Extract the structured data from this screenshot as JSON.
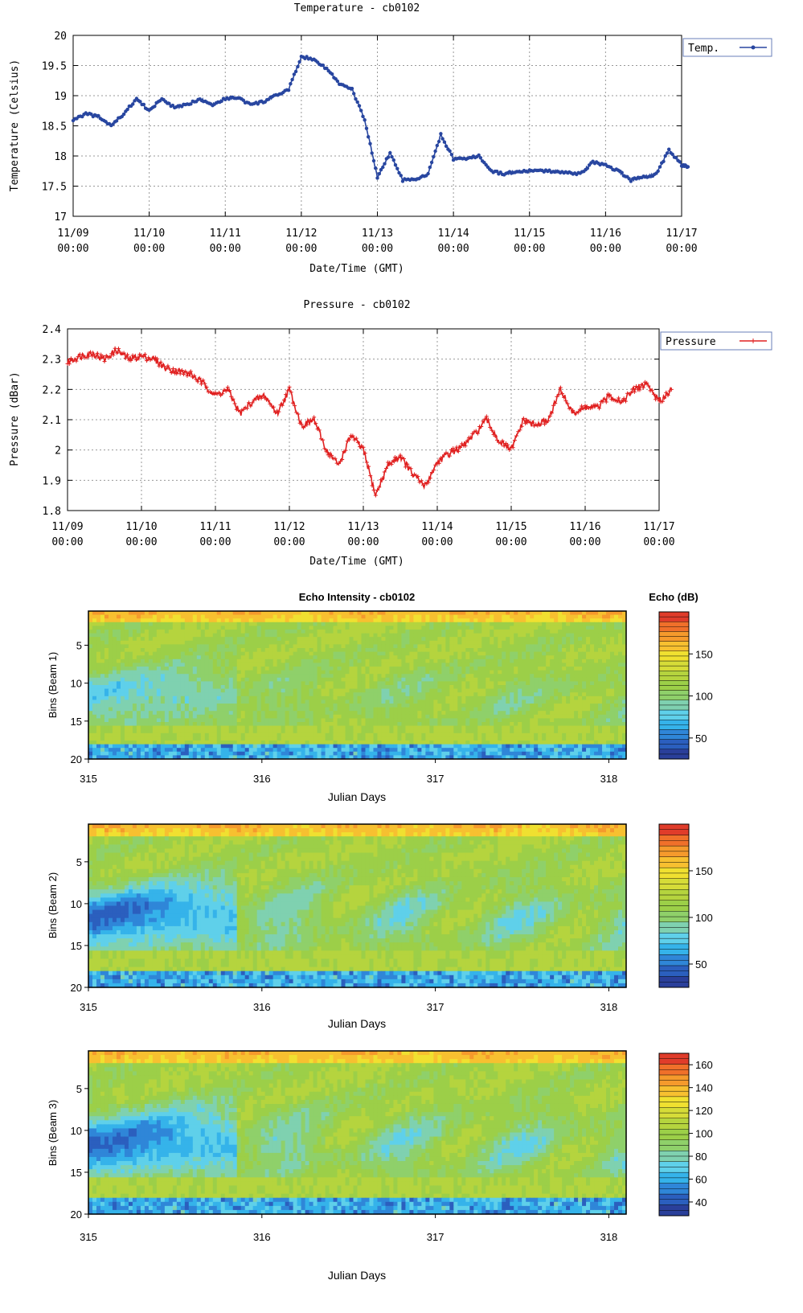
{
  "chart_data": [
    {
      "type": "line",
      "title": "Temperature -  cb0102",
      "xlabel": "Date/Time (GMT)",
      "ylabel": "Temperature (Celsius)",
      "ylim": [
        17,
        20
      ],
      "yticks": [
        "17",
        "17.5",
        "18",
        "18.5",
        "19",
        "19.5",
        "20"
      ],
      "xticks": [
        {
          "date": "11/09",
          "time": "00:00"
        },
        {
          "date": "11/10",
          "time": "00:00"
        },
        {
          "date": "11/11",
          "time": "00:00"
        },
        {
          "date": "11/12",
          "time": "00:00"
        },
        {
          "date": "11/13",
          "time": "00:00"
        },
        {
          "date": "11/14",
          "time": "00:00"
        },
        {
          "date": "11/15",
          "time": "00:00"
        },
        {
          "date": "11/16",
          "time": "00:00"
        },
        {
          "date": "11/17",
          "time": "00:00"
        }
      ],
      "grid": true,
      "legend_position": "outside-top-right",
      "series": [
        {
          "name": "Temp.",
          "color": "#2846a0",
          "x": [
            "11/09 00:00",
            "11/09 04:00",
            "11/09 08:00",
            "11/09 12:00",
            "11/09 16:00",
            "11/09 20:00",
            "11/10 00:00",
            "11/10 04:00",
            "11/10 08:00",
            "11/10 12:00",
            "11/10 16:00",
            "11/10 20:00",
            "11/11 00:00",
            "11/11 04:00",
            "11/11 08:00",
            "11/11 12:00",
            "11/11 16:00",
            "11/11 20:00",
            "11/12 00:00",
            "11/12 04:00",
            "11/12 08:00",
            "11/12 12:00",
            "11/12 16:00",
            "11/12 20:00",
            "11/13 00:00",
            "11/13 04:00",
            "11/13 08:00",
            "11/13 12:00",
            "11/13 16:00",
            "11/13 20:00",
            "11/14 00:00",
            "11/14 04:00",
            "11/14 08:00",
            "11/14 12:00",
            "11/14 16:00",
            "11/14 20:00",
            "11/15 00:00",
            "11/15 04:00",
            "11/15 08:00",
            "11/15 12:00",
            "11/15 16:00",
            "11/15 20:00",
            "11/16 00:00",
            "11/16 04:00",
            "11/16 08:00",
            "11/16 12:00",
            "11/16 16:00",
            "11/16 20:00",
            "11/17 00:00",
            "11/17 02:00"
          ],
          "y": [
            18.6,
            18.7,
            18.65,
            18.5,
            18.7,
            18.95,
            18.75,
            18.95,
            18.8,
            18.85,
            18.95,
            18.85,
            18.95,
            18.97,
            18.85,
            18.9,
            19.0,
            19.1,
            19.65,
            19.6,
            19.45,
            19.2,
            19.1,
            18.6,
            17.65,
            18.05,
            17.6,
            17.6,
            17.7,
            18.35,
            17.95,
            17.95,
            18.0,
            17.75,
            17.7,
            17.75,
            17.75,
            17.75,
            17.75,
            17.72,
            17.7,
            17.9,
            17.85,
            17.75,
            17.6,
            17.65,
            17.7,
            18.1,
            17.85,
            17.82
          ]
        }
      ]
    },
    {
      "type": "line",
      "title": "Pressure -  cb0102",
      "xlabel": "Date/Time (GMT)",
      "ylabel": "Pressure (dBar)",
      "ylim": [
        1.8,
        2.4
      ],
      "yticks": [
        "1.8",
        "1.9",
        "2",
        "2.1",
        "2.2",
        "2.3",
        "2.4"
      ],
      "xticks": [
        {
          "date": "11/09",
          "time": "00:00"
        },
        {
          "date": "11/10",
          "time": "00:00"
        },
        {
          "date": "11/11",
          "time": "00:00"
        },
        {
          "date": "11/12",
          "time": "00:00"
        },
        {
          "date": "11/13",
          "time": "00:00"
        },
        {
          "date": "11/14",
          "time": "00:00"
        },
        {
          "date": "11/15",
          "time": "00:00"
        },
        {
          "date": "11/16",
          "time": "00:00"
        },
        {
          "date": "11/17",
          "time": "00:00"
        }
      ],
      "grid": true,
      "legend_position": "outside-top-right",
      "series": [
        {
          "name": "Pressure",
          "color": "#e02020",
          "x": [
            "11/09 00:00",
            "11/09 04:00",
            "11/09 08:00",
            "11/09 12:00",
            "11/09 16:00",
            "11/09 20:00",
            "11/10 00:00",
            "11/10 04:00",
            "11/10 08:00",
            "11/10 12:00",
            "11/10 16:00",
            "11/10 20:00",
            "11/11 00:00",
            "11/11 04:00",
            "11/11 08:00",
            "11/11 12:00",
            "11/11 16:00",
            "11/11 20:00",
            "11/12 00:00",
            "11/12 04:00",
            "11/12 08:00",
            "11/12 12:00",
            "11/12 16:00",
            "11/12 20:00",
            "11/13 00:00",
            "11/13 04:00",
            "11/13 08:00",
            "11/13 12:00",
            "11/13 16:00",
            "11/13 20:00",
            "11/14 00:00",
            "11/14 04:00",
            "11/14 08:00",
            "11/14 12:00",
            "11/14 16:00",
            "11/14 20:00",
            "11/15 00:00",
            "11/15 04:00",
            "11/15 08:00",
            "11/15 12:00",
            "11/15 16:00",
            "11/15 20:00",
            "11/16 00:00",
            "11/16 04:00",
            "11/16 08:00",
            "11/16 12:00",
            "11/16 16:00",
            "11/16 20:00",
            "11/17 00:00",
            "11/17 04:00"
          ],
          "y": [
            2.29,
            2.31,
            2.32,
            2.3,
            2.33,
            2.3,
            2.31,
            2.3,
            2.27,
            2.26,
            2.25,
            2.22,
            2.18,
            2.2,
            2.12,
            2.16,
            2.18,
            2.12,
            2.2,
            2.08,
            2.1,
            2.0,
            1.95,
            2.05,
            2.0,
            1.85,
            1.95,
            1.98,
            1.92,
            1.88,
            1.96,
            1.99,
            2.01,
            2.05,
            2.1,
            2.03,
            2.0,
            2.1,
            2.08,
            2.1,
            2.2,
            2.12,
            2.14,
            2.14,
            2.18,
            2.16,
            2.2,
            2.22,
            2.16,
            2.2
          ]
        }
      ]
    },
    {
      "type": "heatmap",
      "title": "Echo Intensity - cb0102",
      "colorbar_label": "Echo (dB)",
      "xlabel": "Julian Days",
      "ylabel": "Bins (Beam 1)",
      "xlim": [
        315,
        318.1
      ],
      "ylim": [
        20,
        1
      ],
      "xticks": [
        "315",
        "316",
        "317",
        "318"
      ],
      "yticks": [
        "5",
        "10",
        "15",
        "20"
      ],
      "colorbar_range": [
        25,
        200
      ],
      "colorbar_ticks": [
        "50",
        "100",
        "150"
      ]
    },
    {
      "type": "heatmap",
      "xlabel": "Julian Days",
      "ylabel": "Bins (Beam 2)",
      "xlim": [
        315,
        318.1
      ],
      "ylim": [
        20,
        1
      ],
      "xticks": [
        "315",
        "316",
        "317",
        "318"
      ],
      "yticks": [
        "5",
        "10",
        "15",
        "20"
      ],
      "colorbar_range": [
        25,
        200
      ],
      "colorbar_ticks": [
        "50",
        "100",
        "150"
      ]
    },
    {
      "type": "heatmap",
      "xlabel": "Julian Days",
      "ylabel": "Bins (Beam 3)",
      "xlim": [
        315,
        318.1
      ],
      "ylim": [
        20,
        1
      ],
      "xticks": [
        "315",
        "316",
        "317",
        "318"
      ],
      "yticks": [
        "5",
        "10",
        "15",
        "20"
      ],
      "colorbar_range": [
        28,
        170
      ],
      "colorbar_ticks": [
        "40",
        "60",
        "80",
        "100",
        "120",
        "140",
        "160"
      ]
    }
  ]
}
